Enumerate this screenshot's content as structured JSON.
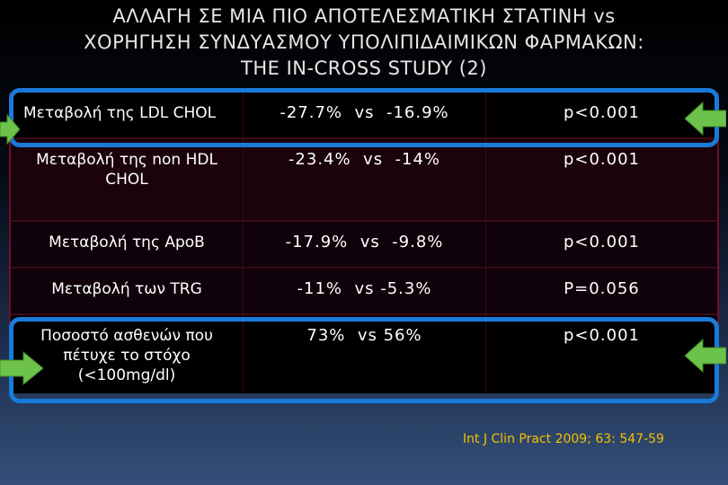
{
  "slide": {
    "title_line1": "ΑΛΛΑΓΗ ΣΕ ΜΙΑ ΠΙΟ ΑΠΟΤΕΛΕΣΜΑΤΙΚΗ ΣΤΑΤΙΝΗ vs",
    "title_line2": "ΧΟΡΗΓΗΣΗ ΣΥΝΔΥΑΣΜΟΥ ΥΠΟΛΙΠΙΔΑΙΜΙΚΩΝ ΦΑΡΜΑΚΩΝ:",
    "title_line3": "THE IN-CROSS STUDY (2)",
    "citation": "Int J Clin Pract 2009; 63: 547-59"
  },
  "table": {
    "rows": [
      {
        "label": "Μεταβολή της LDL CHOL",
        "comparison": "-27.7%  vs  -16.9%",
        "pvalue": "p<0.001"
      },
      {
        "label": "Μεταβολή της non HDL CHOL",
        "comparison": "-23.4%  vs  -14%",
        "pvalue": "p<0.001"
      },
      {
        "label": "Μεταβολή της ApoB",
        "comparison": "-17.9%  vs  -9.8%",
        "pvalue": "p<0.001"
      },
      {
        "label": "Μεταβολή των TRG",
        "comparison": "-11%  vs -5.3%",
        "pvalue": "P=0.056"
      },
      {
        "label": "Ποσοστό ασθενών που πέτυχε το στόχο (<100mg/dl)",
        "comparison": "73%  vs 56%",
        "pvalue": "p<0.001"
      }
    ]
  },
  "colors": {
    "highlight_box": "#1a7ad9",
    "arrow": "#6cc24a",
    "citation": "#f2c200"
  },
  "icons": {
    "arrow_right": "arrow-right-icon",
    "arrow_left": "arrow-left-icon"
  }
}
